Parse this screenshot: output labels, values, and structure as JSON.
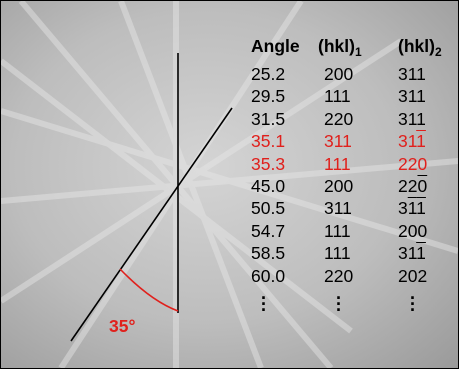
{
  "annotation": "35°",
  "table": {
    "header": {
      "angle": "Angle",
      "hkl1": {
        "text": "(hkl)",
        "sub": "1"
      },
      "hkl2": {
        "text": "(hkl)",
        "sub": "2"
      }
    },
    "rows": [
      {
        "angle": "25.2",
        "hkl1": {
          "digits": [
            "2",
            "0",
            "0"
          ]
        },
        "hkl2": {
          "digits": [
            "3",
            "1",
            "1"
          ]
        },
        "highlight": false
      },
      {
        "angle": "29.5",
        "hkl1": {
          "digits": [
            "1",
            "1",
            "1"
          ]
        },
        "hkl2": {
          "digits": [
            "3",
            "1",
            "1"
          ]
        },
        "highlight": false
      },
      {
        "angle": "31.5",
        "hkl1": {
          "digits": [
            "2",
            "2",
            "0"
          ]
        },
        "hkl2": {
          "digits": [
            "3",
            "1",
            "1"
          ]
        },
        "highlight": false
      },
      {
        "angle": "35.1",
        "hkl1": {
          "digits": [
            "3",
            "1",
            "1"
          ]
        },
        "hkl2": {
          "digits": [
            "3",
            "1",
            "1"
          ],
          "bar": [
            false,
            false,
            true
          ]
        },
        "highlight": true
      },
      {
        "angle": "35.3",
        "hkl1": {
          "digits": [
            "1",
            "1",
            "1"
          ]
        },
        "hkl2": {
          "digits": [
            "2",
            "2",
            "0"
          ]
        },
        "highlight": true
      },
      {
        "angle": "45.0",
        "hkl1": {
          "digits": [
            "2",
            "0",
            "0"
          ]
        },
        "hkl2": {
          "digits": [
            "2",
            "2",
            "0"
          ],
          "bar": [
            false,
            false,
            true
          ]
        },
        "highlight": false
      },
      {
        "angle": "50.5",
        "hkl1": {
          "digits": [
            "3",
            "1",
            "1"
          ]
        },
        "hkl2": {
          "digits": [
            "3",
            "1",
            "1"
          ],
          "bar": [
            false,
            true,
            true
          ]
        },
        "highlight": false
      },
      {
        "angle": "54.7",
        "hkl1": {
          "digits": [
            "1",
            "1",
            "1"
          ]
        },
        "hkl2": {
          "digits": [
            "2",
            "0",
            "0"
          ]
        },
        "highlight": false
      },
      {
        "angle": "58.5",
        "hkl1": {
          "digits": [
            "1",
            "1",
            "1"
          ]
        },
        "hkl2": {
          "digits": [
            "3",
            "1",
            "1"
          ],
          "bar": [
            false,
            false,
            true
          ]
        },
        "highlight": false
      },
      {
        "angle": "60.0",
        "hkl1": {
          "digits": [
            "2",
            "2",
            "0"
          ]
        },
        "hkl2": {
          "digits": [
            "2",
            "0",
            "2"
          ]
        },
        "highlight": false
      }
    ]
  }
}
